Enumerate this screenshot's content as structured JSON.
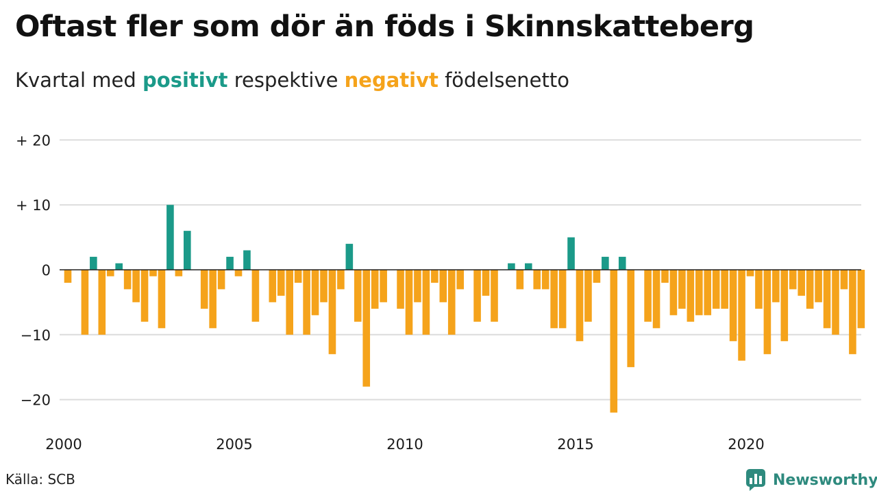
{
  "title": "Oftast fler som dör än föds i Skinnskatteberg",
  "subtitle": {
    "prefix": "Kvartal med ",
    "positive": "positivt",
    "middle": " respektive ",
    "negative": "negativt",
    "suffix": " födelsenetto"
  },
  "source": "Källa: SCB",
  "brand": "Newsworthy",
  "colors": {
    "positive": "#1b9a89",
    "negative": "#f5a31b",
    "grid": "#dcdcdc",
    "zero": "#222222",
    "brand": "#2e8a7e"
  },
  "chart_data": {
    "type": "bar",
    "start_year": 2000,
    "periods_per_year": 4,
    "ylim": [
      -24,
      21
    ],
    "y_ticks": [
      {
        "value": 20,
        "label": "+ 20"
      },
      {
        "value": 10,
        "label": "+ 10"
      },
      {
        "value": 0,
        "label": "0"
      },
      {
        "value": -10,
        "label": "−10"
      },
      {
        "value": -20,
        "label": "−20"
      }
    ],
    "x_ticks": [
      {
        "year": 2000,
        "label": "2000"
      },
      {
        "year": 2005,
        "label": "2005"
      },
      {
        "year": 2010,
        "label": "2010"
      },
      {
        "year": 2015,
        "label": "2015"
      },
      {
        "year": 2020,
        "label": "2020"
      }
    ],
    "values": [
      -2,
      0,
      -10,
      2,
      -10,
      -1,
      1,
      -3,
      -5,
      -8,
      -1,
      -9,
      10,
      -1,
      6,
      0,
      -6,
      -9,
      -3,
      2,
      -1,
      3,
      -8,
      0,
      -5,
      -4,
      -10,
      -2,
      -10,
      -7,
      -5,
      -13,
      -3,
      4,
      -8,
      -18,
      -6,
      -5,
      0,
      -6,
      -10,
      -5,
      -10,
      -2,
      -5,
      -10,
      -3,
      0,
      -8,
      -4,
      -8,
      0,
      1,
      -3,
      1,
      -3,
      -3,
      -9,
      -9,
      5,
      -11,
      -8,
      -2,
      2,
      -22,
      2,
      -15,
      0,
      -8,
      -9,
      -2,
      -7,
      -6,
      -8,
      -7,
      -7,
      -6,
      -6,
      -11,
      -14,
      -1,
      -6,
      -13,
      -5,
      -11,
      -3,
      -4,
      -6,
      -5,
      -9,
      -10,
      -3,
      -13,
      -9
    ]
  }
}
